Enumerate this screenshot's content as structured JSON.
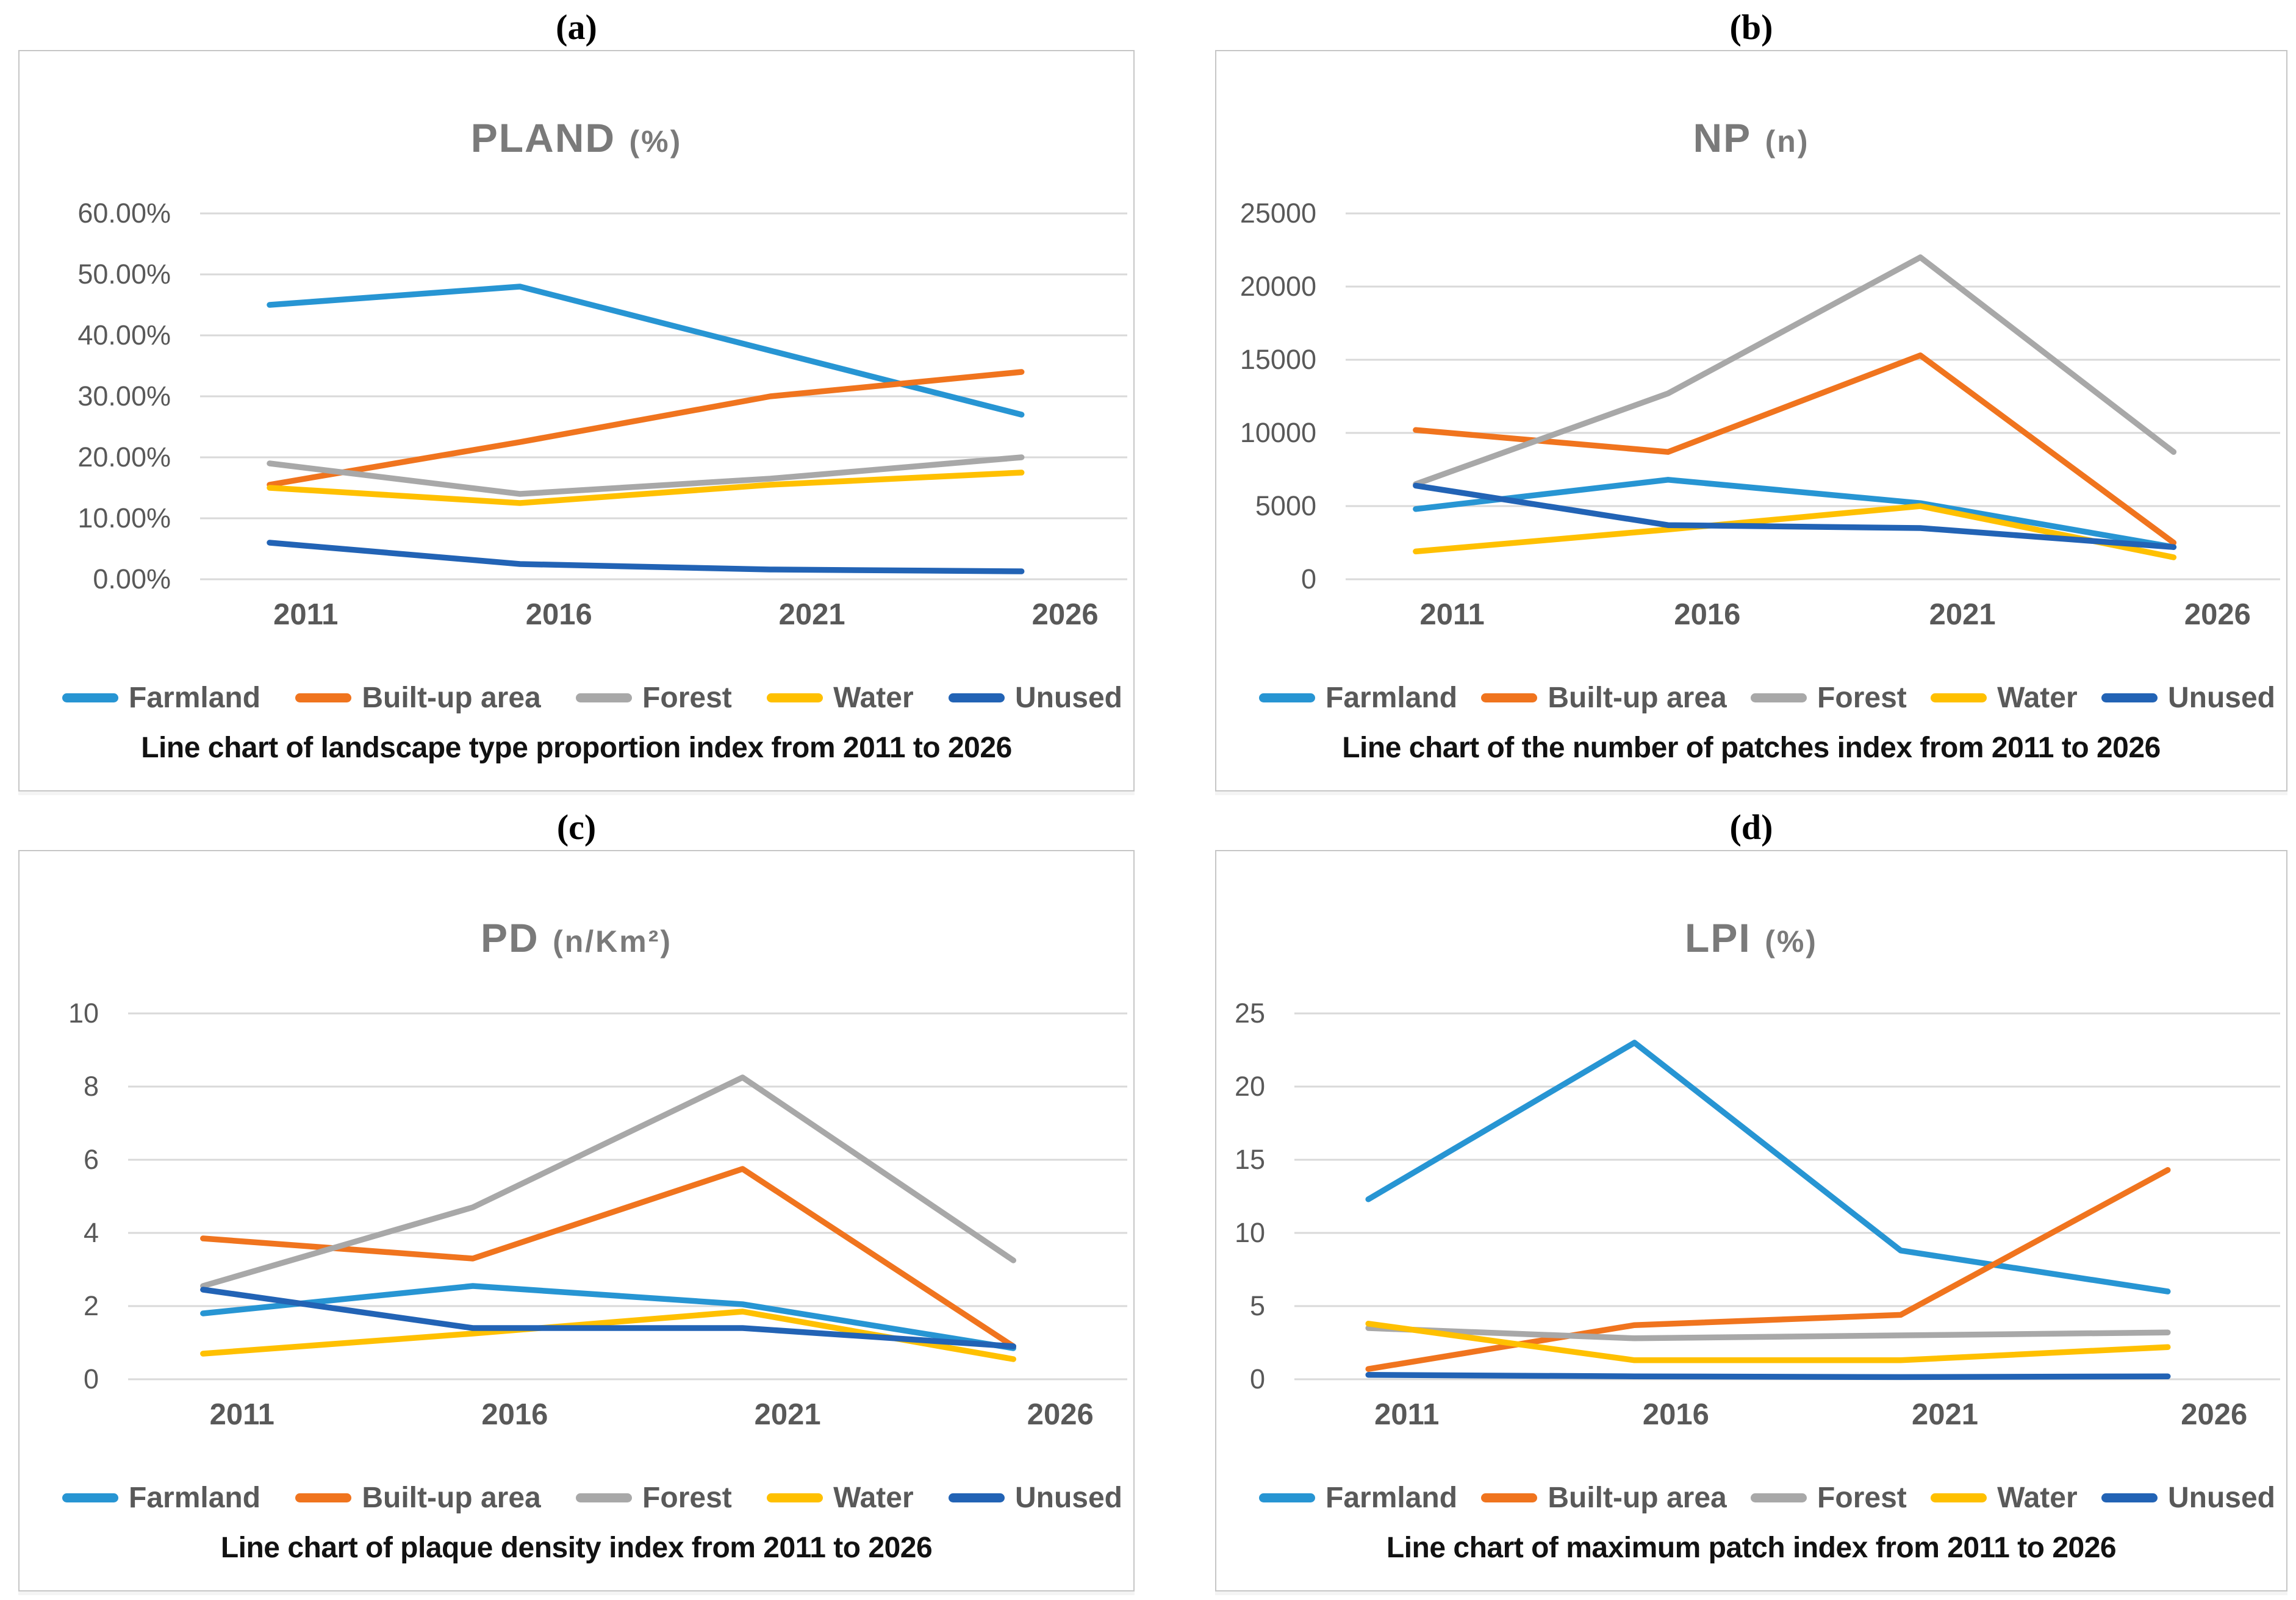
{
  "figure": {
    "panel_labels": [
      "(a)",
      "(b)",
      "(c)",
      "(d)"
    ],
    "series_names": [
      "Farmland",
      "Built-up area",
      "Forest",
      "Water",
      "Unused"
    ],
    "series_colors": {
      "farmland": "#2795D3",
      "built_up_area": "#F0741E",
      "forest": "#A8A8A8",
      "water": "#FFC000",
      "unused": "#2263B5"
    },
    "gridline_color": "#D9D9D9",
    "axis_label_color": "#595959",
    "title_color": "#7A7A7A"
  },
  "chart_data": [
    {
      "id": "a",
      "type": "line",
      "panel_label": "(a)",
      "title": "PLAND",
      "unit": "(%)",
      "caption": "Line chart of landscape type proportion index from 2011 to 2026",
      "categories": [
        "2011",
        "2016",
        "2021",
        "2026"
      ],
      "ylim": [
        0,
        60
      ],
      "ytick_labels": [
        "60.00%",
        "50.00%",
        "40.00%",
        "30.00%",
        "20.00%",
        "10.00%",
        "0.00%"
      ],
      "grid": "horizontal",
      "legend_position": "bottom",
      "series": [
        {
          "name": "Farmland",
          "color": "#2795D3",
          "values": [
            45,
            48,
            37.5,
            27
          ]
        },
        {
          "name": "Built-up area",
          "color": "#F0741E",
          "values": [
            15.5,
            22.5,
            30,
            34
          ]
        },
        {
          "name": "Forest",
          "color": "#A8A8A8",
          "values": [
            19,
            14,
            16.5,
            20
          ]
        },
        {
          "name": "Water",
          "color": "#FFC000",
          "values": [
            15,
            12.5,
            15.5,
            17.5
          ]
        },
        {
          "name": "Unused",
          "color": "#2263B5",
          "values": [
            6,
            2.5,
            1.6,
            1.3
          ]
        }
      ]
    },
    {
      "id": "b",
      "type": "line",
      "panel_label": "(b)",
      "title": "NP",
      "unit": "(n)",
      "caption": "Line chart of the number of patches index from 2011 to 2026",
      "categories": [
        "2011",
        "2016",
        "2021",
        "2026"
      ],
      "ylim": [
        0,
        25000
      ],
      "ytick_labels": [
        "25000",
        "20000",
        "15000",
        "10000",
        "5000",
        "0"
      ],
      "grid": "horizontal",
      "legend_position": "bottom",
      "series": [
        {
          "name": "Farmland",
          "color": "#2795D3",
          "values": [
            4800,
            6800,
            5200,
            2200
          ]
        },
        {
          "name": "Built-up area",
          "color": "#F0741E",
          "values": [
            10200,
            8700,
            15300,
            2500
          ]
        },
        {
          "name": "Forest",
          "color": "#A8A8A8",
          "values": [
            6500,
            12700,
            22000,
            8700
          ]
        },
        {
          "name": "Water",
          "color": "#FFC000",
          "values": [
            1900,
            3400,
            5000,
            1500
          ]
        },
        {
          "name": "Unused",
          "color": "#2263B5",
          "values": [
            6400,
            3700,
            3500,
            2200
          ]
        }
      ]
    },
    {
      "id": "c",
      "type": "line",
      "panel_label": "(c)",
      "title": "PD",
      "unit": "(n/Km²)",
      "caption": "Line chart of plaque density index from 2011 to 2026",
      "categories": [
        "2011",
        "2016",
        "2021",
        "2026"
      ],
      "ylim": [
        0,
        10
      ],
      "ytick_labels": [
        "10",
        "8",
        "6",
        "4",
        "2",
        "0"
      ],
      "grid": "horizontal",
      "legend_position": "bottom",
      "series": [
        {
          "name": "Farmland",
          "color": "#2795D3",
          "values": [
            1.8,
            2.55,
            2.05,
            0.85
          ]
        },
        {
          "name": "Built-up area",
          "color": "#F0741E",
          "values": [
            3.85,
            3.3,
            5.75,
            0.9
          ]
        },
        {
          "name": "Forest",
          "color": "#A8A8A8",
          "values": [
            2.55,
            4.7,
            8.25,
            3.25
          ]
        },
        {
          "name": "Water",
          "color": "#FFC000",
          "values": [
            0.7,
            1.25,
            1.85,
            0.55
          ]
        },
        {
          "name": "Unused",
          "color": "#2263B5",
          "values": [
            2.45,
            1.4,
            1.4,
            0.9
          ]
        }
      ]
    },
    {
      "id": "d",
      "type": "line",
      "panel_label": "(d)",
      "title": "LPI",
      "unit": "(%)",
      "caption": "Line chart of maximum patch index from 2011 to 2026",
      "categories": [
        "2011",
        "2016",
        "2021",
        "2026"
      ],
      "ylim": [
        0,
        25
      ],
      "ytick_labels": [
        "25",
        "20",
        "15",
        "10",
        "5",
        "0"
      ],
      "grid": "horizontal",
      "legend_position": "bottom",
      "series": [
        {
          "name": "Farmland",
          "color": "#2795D3",
          "values": [
            12.3,
            23,
            8.8,
            6
          ]
        },
        {
          "name": "Built-up area",
          "color": "#F0741E",
          "values": [
            0.7,
            3.7,
            4.4,
            14.3
          ]
        },
        {
          "name": "Forest",
          "color": "#A8A8A8",
          "values": [
            3.5,
            2.8,
            3,
            3.2
          ]
        },
        {
          "name": "Water",
          "color": "#FFC000",
          "values": [
            3.8,
            1.3,
            1.3,
            2.2
          ]
        },
        {
          "name": "Unused",
          "color": "#2263B5",
          "values": [
            0.3,
            0.2,
            0.15,
            0.2
          ]
        }
      ]
    }
  ]
}
